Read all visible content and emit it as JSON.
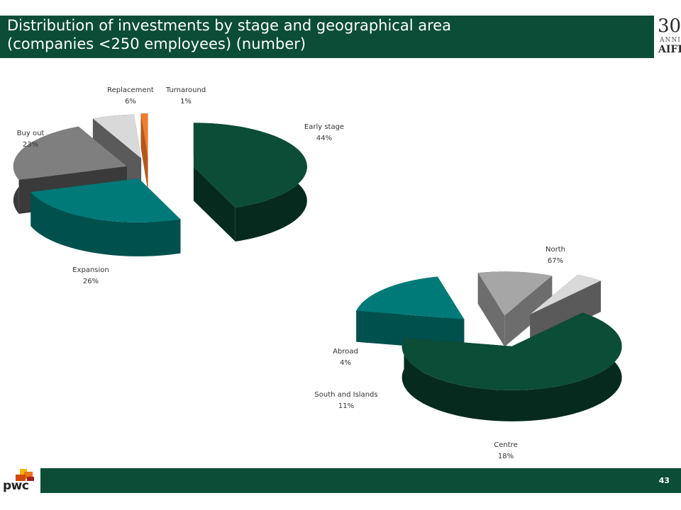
{
  "header": {
    "title_line1": "Distribution of investments by stage and geographical area",
    "title_line2": "(companies <250 employees) (number)",
    "logo_number": "30",
    "logo_word": "ANNI",
    "logo_brand": "AIFI"
  },
  "footer": {
    "logo_text": "pwc",
    "page_number": "43"
  },
  "colors": {
    "brand_green": "#0b4d36",
    "teal": "#007a78",
    "grey": "#7f7f7f",
    "light_grey": "#a6a6a6",
    "very_light_grey": "#d9d9d9",
    "orange": "#ed7d31"
  },
  "chart_data": [
    {
      "type": "pie",
      "style": "3d-exploded",
      "slices": [
        {
          "label": "Early stage",
          "value": 44,
          "value_label": "44%",
          "color": "#0b4d36",
          "side": "#062b1e"
        },
        {
          "label": "Expansion",
          "value": 26,
          "value_label": "26%",
          "color": "#007a78",
          "side": "#00504e"
        },
        {
          "label": "Buy out",
          "value": 23,
          "value_label": "23%",
          "color": "#7f7f7f",
          "side": "#3a3a3a"
        },
        {
          "label": "Replacement",
          "value": 6,
          "value_label": "6%",
          "color": "#d9d9d9",
          "side": "#5a5a5a"
        },
        {
          "label": "Turnaround",
          "value": 1,
          "value_label": "1%",
          "color": "#ed7d31",
          "side": "#b3581c"
        }
      ]
    },
    {
      "type": "pie",
      "style": "3d-exploded",
      "slices": [
        {
          "label": "North",
          "value": 67,
          "value_label": "67%",
          "color": "#0b4d36",
          "side": "#062b1e"
        },
        {
          "label": "Centre",
          "value": 18,
          "value_label": "18%",
          "color": "#007a78",
          "side": "#00504e"
        },
        {
          "label": "South and Islands",
          "value": 11,
          "value_label": "11%",
          "color": "#a6a6a6",
          "side": "#6d6d6d"
        },
        {
          "label": "Abroad",
          "value": 4,
          "value_label": "4%",
          "color": "#d9d9d9",
          "side": "#5a5a5a"
        }
      ]
    }
  ]
}
